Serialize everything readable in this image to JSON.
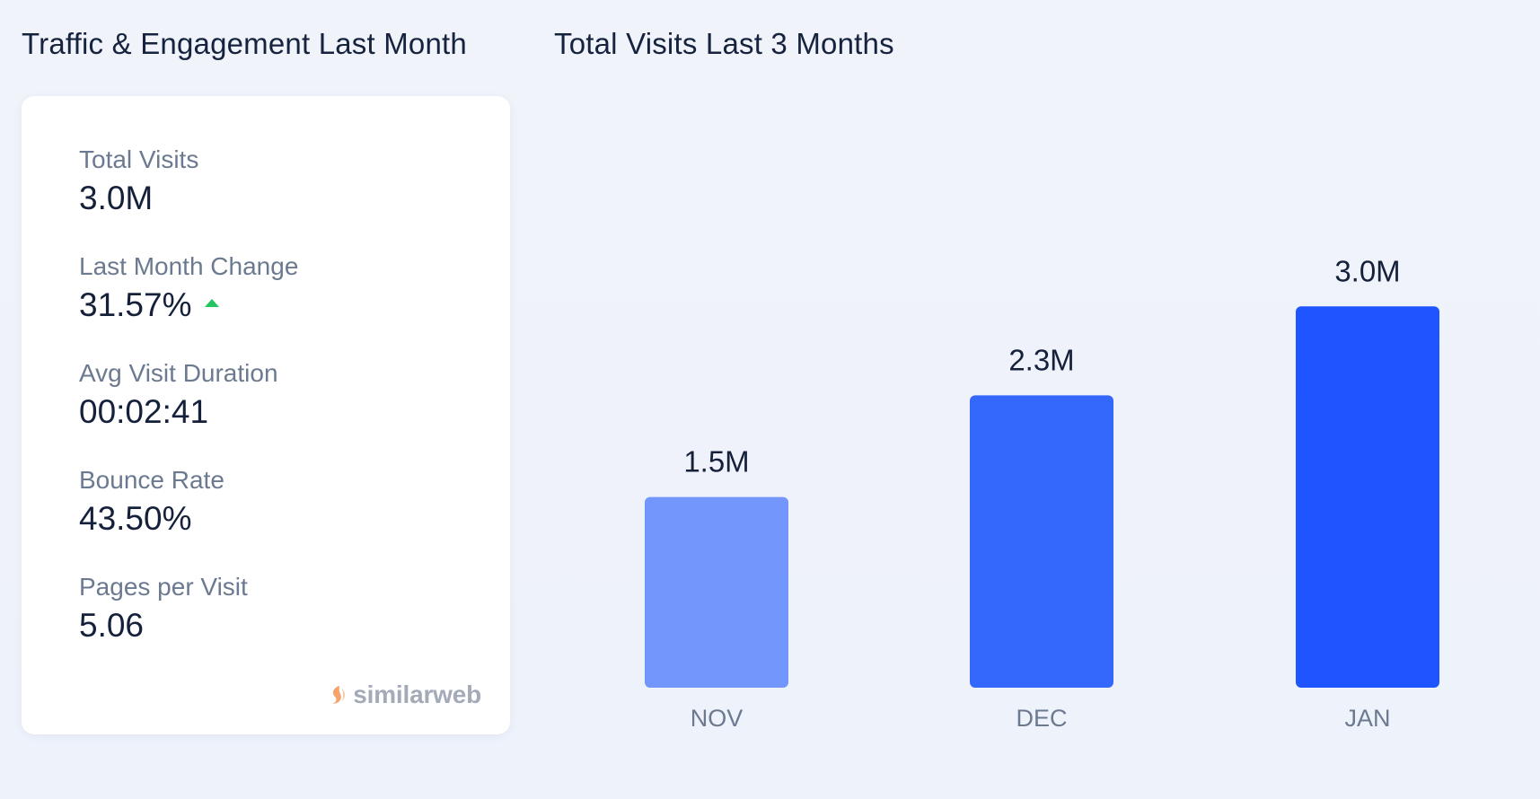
{
  "left_panel": {
    "title": "Traffic & Engagement Last Month",
    "metrics": [
      {
        "label": "Total Visits",
        "value": "3.0M"
      },
      {
        "label": "Last Month Change",
        "value": "31.57%",
        "trend": "up"
      },
      {
        "label": "Avg Visit Duration",
        "value": "00:02:41"
      },
      {
        "label": "Bounce Rate",
        "value": "43.50%"
      },
      {
        "label": "Pages per Visit",
        "value": "5.06"
      }
    ],
    "brand": "similarweb"
  },
  "colors": {
    "trend_up": "#22c55e",
    "brand_orange": "#f5a36b",
    "brand_text": "#a3abb8"
  },
  "chart_data": {
    "type": "bar",
    "title": "Total Visits Last 3 Months",
    "categories": [
      "NOV",
      "DEC",
      "JAN"
    ],
    "values": [
      1.5,
      2.3,
      3.0
    ],
    "data_labels": [
      "1.5M",
      "2.3M",
      "3.0M"
    ],
    "colors": [
      "#7296fb",
      "#3468fd",
      "#1e55fe"
    ],
    "unit": "M",
    "ylim": [
      0,
      3.8
    ],
    "xlabel": "",
    "ylabel": "",
    "grid": false,
    "legend": "none"
  }
}
